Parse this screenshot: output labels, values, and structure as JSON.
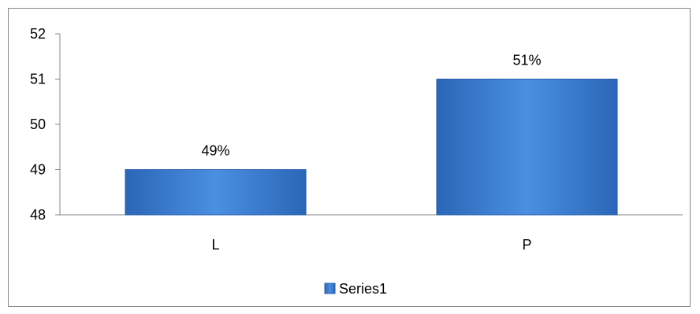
{
  "chart_data": {
    "type": "bar",
    "categories": [
      "L",
      "P"
    ],
    "series": [
      {
        "name": "Series1",
        "values": [
          49,
          51
        ],
        "labels": [
          "49%",
          "51%"
        ]
      }
    ],
    "ylim": [
      48,
      52
    ],
    "yticks": [
      48,
      49,
      50,
      51,
      52
    ],
    "grid": false,
    "legend": "bottom",
    "bar_color": "#3d7fd6",
    "bar_edge_color": "#2a5fa8"
  }
}
